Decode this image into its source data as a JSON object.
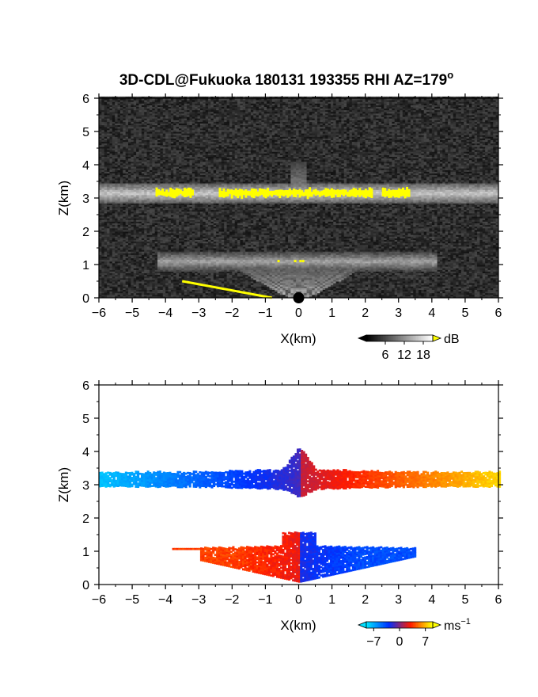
{
  "title": "3D-CDL@Fukuoka 180131 193355 RHI AZ=179",
  "title_sup": "o",
  "chart_data": [
    {
      "type": "heatmap",
      "name": "backscatter",
      "xlabel": "X(km)",
      "ylabel": "Z(km)",
      "xlim": [
        -6,
        6
      ],
      "ylim": [
        0,
        6
      ],
      "xticks": [
        -6,
        -5,
        -4,
        -3,
        -2,
        -1,
        0,
        1,
        2,
        3,
        4,
        5,
        6
      ],
      "yticks": [
        0,
        1,
        2,
        3,
        4,
        5,
        6
      ],
      "background": "#1a1a1a",
      "colorbar": {
        "unit": "dB",
        "ticks": [
          6,
          12,
          18
        ],
        "range": [
          0,
          21
        ],
        "colors": [
          "#000000",
          "#ffffff"
        ],
        "over_color": "#ffff00"
      },
      "features": {
        "upper_layer": {
          "z_center_km": 3.15,
          "x_range_km": [
            -6,
            6
          ],
          "saturated_x_km": [
            [
              -4.3,
              -3.2
            ],
            [
              -2.4,
              2.2
            ],
            [
              2.5,
              3.3
            ]
          ]
        },
        "lower_layer": {
          "z_center_km": 1.1,
          "x_range_km": [
            -4.2,
            4.2
          ],
          "saturated_x_km": [
            [
              -0.8,
              -0.5
            ],
            [
              -0.3,
              0.3
            ]
          ]
        },
        "ground_clutter": {
          "x_range_km": [
            -3.5,
            -0.8
          ],
          "z_range_km": [
            0.5,
            0.0
          ]
        }
      }
    },
    {
      "type": "heatmap",
      "name": "doppler_velocity",
      "xlabel": "X(km)",
      "ylabel": "Z(km)",
      "xlim": [
        -6,
        6
      ],
      "ylim": [
        0,
        6
      ],
      "xticks": [
        -6,
        -5,
        -4,
        -3,
        -2,
        -1,
        0,
        1,
        2,
        3,
        4,
        5,
        6
      ],
      "yticks": [
        0,
        1,
        2,
        3,
        4,
        5,
        6
      ],
      "background": "#ffffff",
      "colorbar": {
        "unit": "ms",
        "unit_sup": "−1",
        "ticks": [
          -7,
          0,
          7
        ],
        "tick_labels": [
          "−7",
          "0",
          "7"
        ],
        "range": [
          -9,
          9
        ],
        "colors": [
          "#00e0ff",
          "#0030ff",
          "#ff1a00",
          "#ffff00"
        ]
      },
      "features": {
        "upper_layer": {
          "z_center_km": 3.15,
          "x_range_km": [
            -6,
            6
          ],
          "velocity_ms": [
            -8,
            8
          ]
        },
        "lower_layer": {
          "z_center_km": 1.0,
          "x_range_km": [
            -3.8,
            3.5
          ]
        }
      }
    }
  ]
}
